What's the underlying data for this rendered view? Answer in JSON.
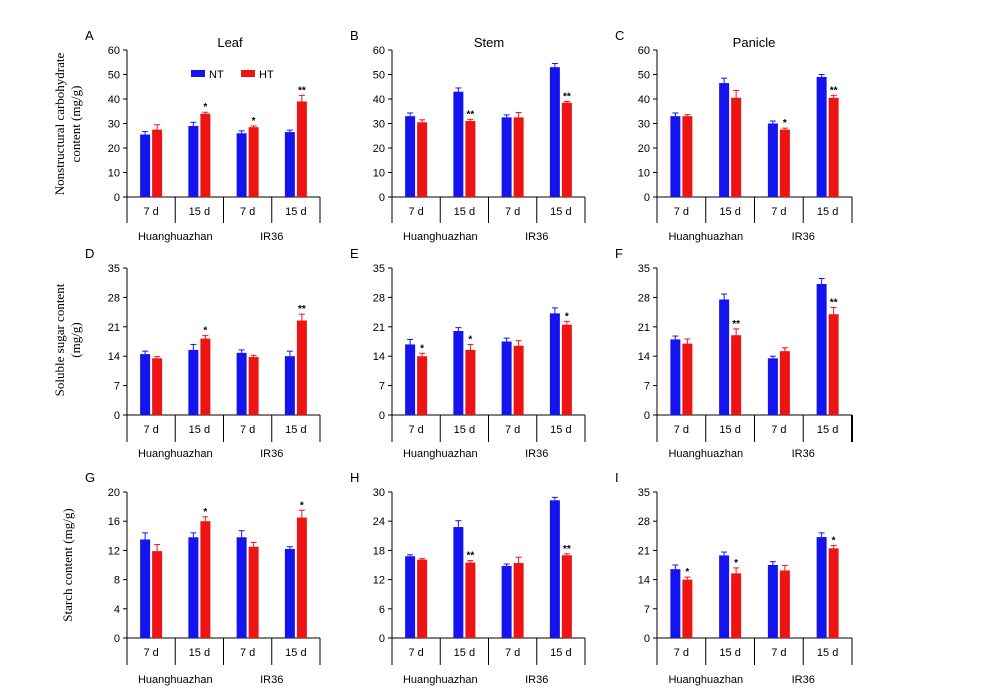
{
  "colors": {
    "NT": "#1414ee",
    "HT": "#ee1414"
  },
  "legend": {
    "nt_label": "NT",
    "ht_label": "HT"
  },
  "row_ylabels": [
    [
      "Nonstructural carbohydrate",
      "content (mg/g)"
    ],
    [
      "Soluble sugar content",
      "(mg/g)"
    ],
    [
      "Starch content (mg/g)"
    ]
  ],
  "chart_data": [
    {
      "panel": "A",
      "type": "bar",
      "title": "Leaf",
      "categories": [
        "7 d",
        "15 d",
        "7 d",
        "15 d"
      ],
      "groups": [
        "Huanghuazhan",
        "IR36"
      ],
      "yticks": [
        0,
        10,
        20,
        30,
        40,
        50,
        60
      ],
      "ylim": [
        0,
        60
      ],
      "series": [
        {
          "name": "NT",
          "values": [
            25.5,
            29,
            26,
            26.5
          ],
          "errors": [
            1.2,
            1.5,
            1.0,
            0.8
          ]
        },
        {
          "name": "HT",
          "values": [
            27.5,
            34,
            28.5,
            39
          ],
          "errors": [
            2.0,
            0.6,
            0.5,
            2.5
          ]
        }
      ],
      "significance": [
        "",
        "*",
        "*",
        "**"
      ]
    },
    {
      "panel": "B",
      "type": "bar",
      "title": "Stem",
      "categories": [
        "7 d",
        "15 d",
        "7 d",
        "15 d"
      ],
      "groups": [
        "Huanghuazhan",
        "IR36"
      ],
      "yticks": [
        0,
        10,
        20,
        30,
        40,
        50,
        60
      ],
      "ylim": [
        0,
        60
      ],
      "series": [
        {
          "name": "NT",
          "values": [
            33,
            43,
            32.5,
            53
          ],
          "errors": [
            1.3,
            1.5,
            1.0,
            1.5
          ]
        },
        {
          "name": "HT",
          "values": [
            30.5,
            31,
            32.5,
            38.5
          ],
          "errors": [
            1.0,
            0.7,
            2.0,
            0.5
          ]
        }
      ],
      "significance": [
        "",
        "**",
        "",
        "**"
      ]
    },
    {
      "panel": "C",
      "type": "bar",
      "title": "Panicle",
      "categories": [
        "7 d",
        "15 d",
        "7 d",
        "15 d"
      ],
      "groups": [
        "Huanghuazhan",
        "IR36"
      ],
      "yticks": [
        0,
        10,
        20,
        30,
        40,
        50,
        60
      ],
      "ylim": [
        0,
        60
      ],
      "series": [
        {
          "name": "NT",
          "values": [
            33,
            46.5,
            30,
            49
          ],
          "errors": [
            1.3,
            2.0,
            1.0,
            1.0
          ]
        },
        {
          "name": "HT",
          "values": [
            33,
            40.5,
            27.5,
            40.5
          ],
          "errors": [
            0.6,
            3.0,
            0.6,
            1.0
          ]
        }
      ],
      "significance": [
        "",
        "",
        "*",
        "**"
      ]
    },
    {
      "panel": "D",
      "type": "bar",
      "title": "",
      "categories": [
        "7 d",
        "15 d",
        "7 d",
        "15 d"
      ],
      "groups": [
        "Huanghuazhan",
        "IR36"
      ],
      "yticks": [
        0,
        7,
        14,
        21,
        28,
        35
      ],
      "ylim": [
        0,
        35
      ],
      "series": [
        {
          "name": "NT",
          "values": [
            14.5,
            15.5,
            14.8,
            14
          ],
          "errors": [
            0.7,
            1.3,
            0.7,
            1.2
          ]
        },
        {
          "name": "HT",
          "values": [
            13.5,
            18.2,
            13.8,
            22.5
          ],
          "errors": [
            0.4,
            0.7,
            0.4,
            1.5
          ]
        }
      ],
      "significance": [
        "",
        "*",
        "",
        "**"
      ]
    },
    {
      "panel": "E",
      "type": "bar",
      "title": "",
      "categories": [
        "7 d",
        "15 d",
        "7 d",
        "15 d"
      ],
      "groups": [
        "Huanghuazhan",
        "IR36"
      ],
      "yticks": [
        0,
        7,
        14,
        21,
        28,
        35
      ],
      "ylim": [
        0,
        35
      ],
      "series": [
        {
          "name": "NT",
          "values": [
            16.8,
            20,
            17.5,
            24.2
          ],
          "errors": [
            1.2,
            0.8,
            0.8,
            1.3
          ]
        },
        {
          "name": "HT",
          "values": [
            14,
            15.5,
            16.5,
            21.5
          ],
          "errors": [
            0.7,
            1.3,
            1.2,
            0.8
          ]
        }
      ],
      "significance": [
        "*",
        "*",
        "",
        "*"
      ]
    },
    {
      "panel": "F",
      "type": "bar",
      "title": "",
      "categories": [
        "7 d",
        "15 d",
        "7 d",
        "15 d"
      ],
      "groups": [
        "Huanghuazhan",
        "IR36"
      ],
      "yticks": [
        0,
        7,
        14,
        21,
        28,
        35
      ],
      "ylim": [
        0,
        35
      ],
      "series": [
        {
          "name": "NT",
          "values": [
            18,
            27.5,
            13.5,
            31.2
          ],
          "errors": [
            0.8,
            1.3,
            0.5,
            1.3
          ]
        },
        {
          "name": "HT",
          "values": [
            17,
            19,
            15.2,
            24
          ],
          "errors": [
            1.1,
            1.5,
            0.8,
            1.6
          ]
        }
      ],
      "significance": [
        "",
        "**",
        "",
        "**"
      ]
    },
    {
      "panel": "G",
      "type": "bar",
      "title": "",
      "categories": [
        "7 d",
        "15 d",
        "7 d",
        "15 d"
      ],
      "groups": [
        "Huanghuazhan",
        "IR36"
      ],
      "yticks": [
        0,
        4,
        8,
        12,
        16,
        20
      ],
      "ylim": [
        0,
        20
      ],
      "series": [
        {
          "name": "NT",
          "values": [
            13.5,
            13.8,
            13.8,
            12.2
          ],
          "errors": [
            0.9,
            0.6,
            0.9,
            0.3
          ]
        },
        {
          "name": "HT",
          "values": [
            11.9,
            16,
            12.5,
            16.5
          ],
          "errors": [
            0.9,
            0.6,
            0.6,
            1.0
          ]
        }
      ],
      "significance": [
        "",
        "*",
        "",
        "*"
      ]
    },
    {
      "panel": "H",
      "type": "bar",
      "title": "",
      "categories": [
        "7 d",
        "15 d",
        "7 d",
        "15 d"
      ],
      "groups": [
        "Huanghuazhan",
        "IR36"
      ],
      "yticks": [
        0,
        6,
        12,
        18,
        24,
        30
      ],
      "ylim": [
        0,
        30
      ],
      "series": [
        {
          "name": "NT",
          "values": [
            16.8,
            22.8,
            14.8,
            28.3
          ],
          "errors": [
            0.3,
            1.3,
            0.4,
            0.6
          ]
        },
        {
          "name": "HT",
          "values": [
            16.1,
            15.5,
            15.4,
            17
          ],
          "errors": [
            0.2,
            0.4,
            1.2,
            0.3
          ]
        }
      ],
      "significance": [
        "",
        "**",
        "",
        "**"
      ]
    },
    {
      "panel": "I",
      "type": "bar",
      "title": "",
      "categories": [
        "7 d",
        "15 d",
        "7 d",
        "15 d"
      ],
      "groups": [
        "Huanghuazhan",
        "IR36"
      ],
      "yticks": [
        0,
        7,
        14,
        21,
        28,
        35
      ],
      "ylim": [
        0,
        35
      ],
      "series": [
        {
          "name": "NT",
          "values": [
            16.5,
            19.8,
            17.5,
            24.2
          ],
          "errors": [
            1.0,
            0.8,
            0.8,
            1.0
          ]
        },
        {
          "name": "HT",
          "values": [
            14,
            15.5,
            16.2,
            21.5
          ],
          "errors": [
            0.6,
            1.3,
            1.2,
            0.7
          ]
        }
      ],
      "significance": [
        "*",
        "*",
        "",
        "*"
      ]
    }
  ]
}
